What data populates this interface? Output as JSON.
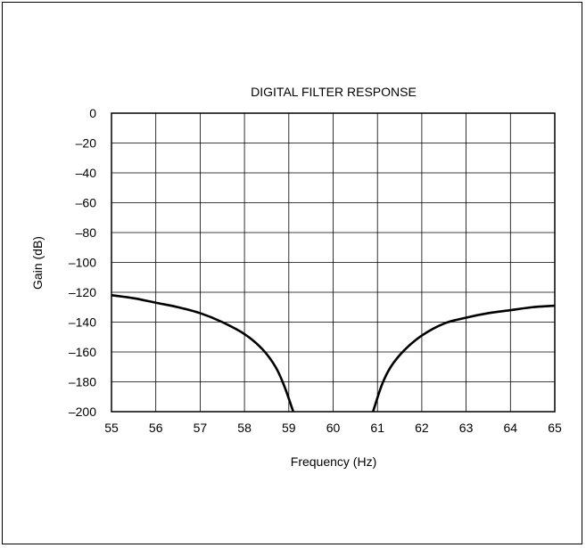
{
  "chart_data": {
    "type": "line",
    "title": "DIGITAL FILTER RESPONSE",
    "xlabel": "Frequency (Hz)",
    "ylabel": "Gain (dB)",
    "xlim": [
      55,
      65
    ],
    "ylim": [
      -200,
      0
    ],
    "grid": true,
    "x_ticks": [
      55,
      56,
      57,
      58,
      59,
      60,
      61,
      62,
      63,
      64,
      65
    ],
    "y_ticks": [
      0,
      -20,
      -40,
      -60,
      -80,
      -100,
      -120,
      -140,
      -160,
      -180,
      -200
    ],
    "x_tick_labels": [
      "55",
      "56",
      "57",
      "58",
      "59",
      "60",
      "61",
      "62",
      "63",
      "64",
      "65"
    ],
    "y_tick_labels": [
      "0",
      "–20",
      "–40",
      "–60",
      "–80",
      "–100",
      "–120",
      "–140",
      "–160",
      "–180",
      "–200"
    ],
    "series": [
      {
        "segments": [
          {
            "x": [
              55.0,
              55.5,
              56.0,
              56.5,
              57.0,
              57.5,
              58.0,
              58.4,
              58.7,
              58.9,
              59.1
            ],
            "y": [
              -122,
              -124,
              -127,
              -130,
              -134,
              -140,
              -148,
              -158,
              -170,
              -183,
              -200
            ]
          },
          {
            "x": [
              60.9,
              61.1,
              61.3,
              61.6,
              62.0,
              62.5,
              63.0,
              63.5,
              64.0,
              64.5,
              65.0
            ],
            "y": [
              -200,
              -182,
              -170,
              -159,
              -149,
              -141,
              -137,
              -134,
              -132,
              -130,
              -129
            ]
          }
        ]
      }
    ]
  }
}
